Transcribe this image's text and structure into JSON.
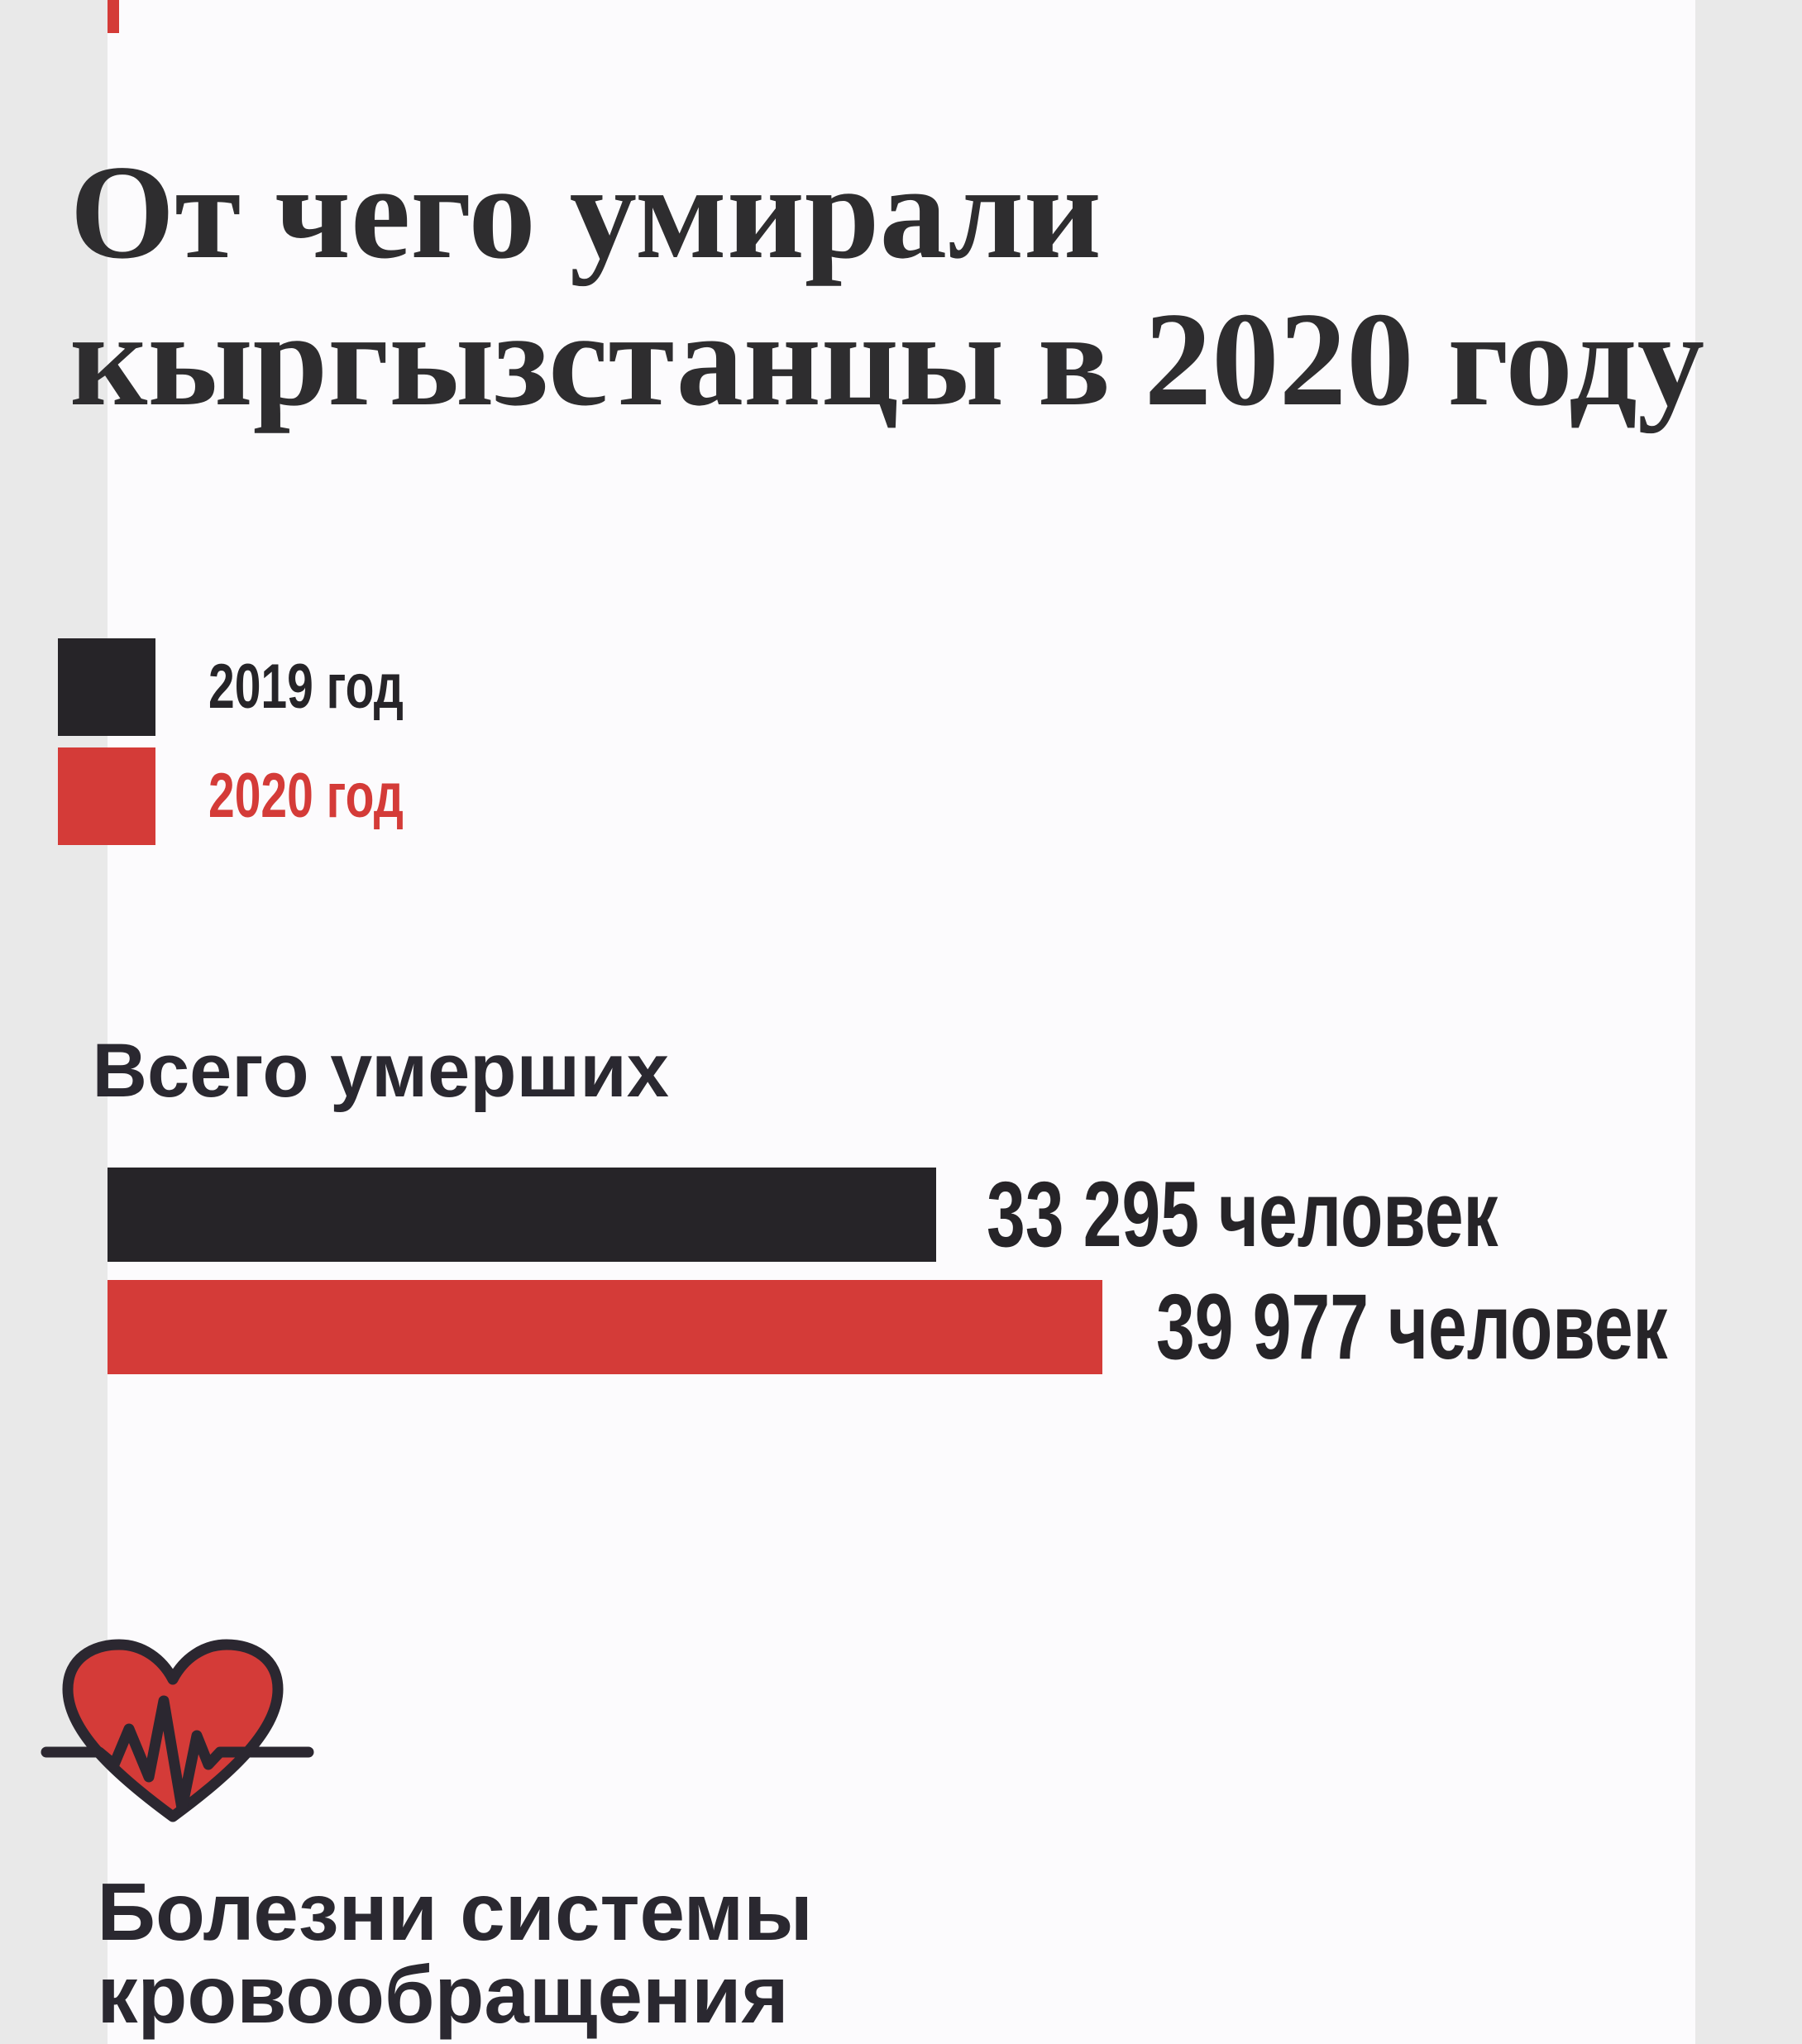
{
  "colors": {
    "background": "#fcfbfd",
    "red": "#d43b38",
    "dark": "#262428",
    "text": "#2a2830"
  },
  "title": {
    "line1": "От чего умирали",
    "line2": "кыргызстанцы в 2020 году"
  },
  "legend": {
    "items": [
      {
        "label": "2019 год",
        "color": "#262428"
      },
      {
        "label": "2020 год",
        "color": "#d43b38"
      }
    ]
  },
  "total_section": {
    "heading": "Всего умерших",
    "bars": [
      {
        "series": "2019 год",
        "value": 33295,
        "label": "33 295 человек",
        "color": "#262428"
      },
      {
        "series": "2020 год",
        "value": 39977,
        "label": "39 977 человек",
        "color": "#d43b38"
      }
    ]
  },
  "next_section": {
    "icon": "heart-ecg-icon",
    "heading_line1": "Болезни системы",
    "heading_line2": "кровообращения"
  },
  "chart_data": {
    "type": "bar",
    "orientation": "horizontal",
    "title": "От чего умирали кыргызстанцы в 2020 году",
    "legend": [
      "2019 год",
      "2020 год"
    ],
    "legend_position": "top-left",
    "units": "человек",
    "categories": [
      "Всего умерших",
      "Болезни системы кровообращения"
    ],
    "series": [
      {
        "name": "2019 год",
        "color": "#262428",
        "values": [
          33295,
          null
        ]
      },
      {
        "name": "2020 год",
        "color": "#d43b38",
        "values": [
          39977,
          null
        ]
      }
    ],
    "value_labels": [
      [
        "33 295 человек",
        "39 977 человек"
      ],
      [
        null,
        null
      ]
    ]
  }
}
